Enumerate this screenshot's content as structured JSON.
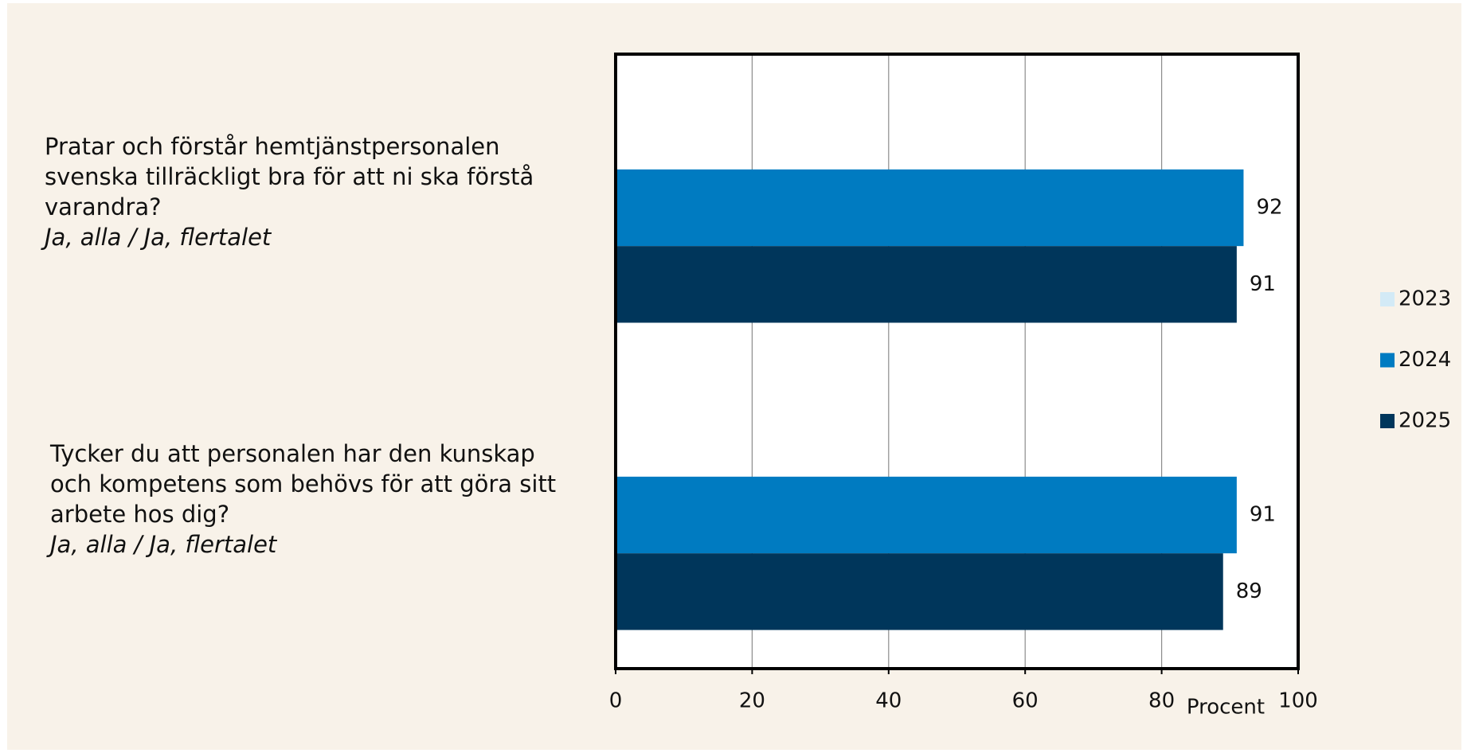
{
  "chart_data": {
    "type": "bar",
    "orientation": "horizontal",
    "categories": [
      "Pratar och förstår hemtjänstpersonalen\nsvenska tillräckligt bra för att ni ska förstå\nvarandra?",
      "Tycker du att personalen har den kunskap\noch kompetens som behövs för att göra sitt\narbete hos dig?"
    ],
    "category_notes": [
      "Ja, alla / Ja, flertalet",
      "Ja, alla / Ja, flertalet"
    ],
    "series": [
      {
        "name": "2023",
        "color": "#d3eaf6",
        "values": [
          null,
          null
        ]
      },
      {
        "name": "2024",
        "color": "#007bc1",
        "values": [
          92,
          91
        ]
      },
      {
        "name": "2025",
        "color": "#00365b",
        "values": [
          91,
          89
        ]
      }
    ],
    "x_label": "Procent",
    "xlim": [
      0,
      100
    ],
    "xticks": [
      0,
      20,
      40,
      60,
      80,
      100
    ],
    "grid": true,
    "legend": "right"
  }
}
